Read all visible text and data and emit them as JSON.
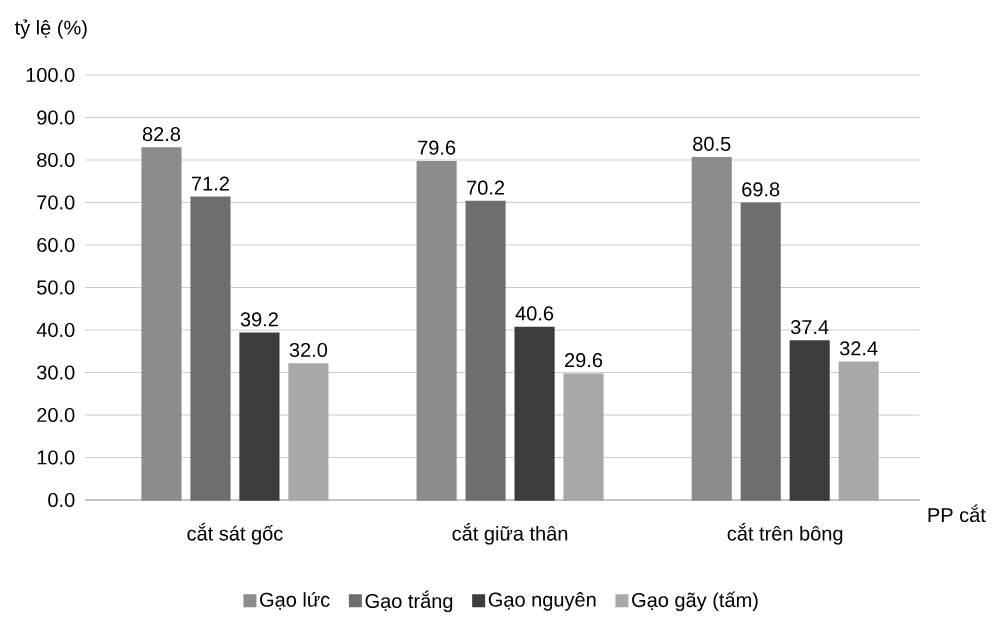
{
  "chart_data": {
    "type": "bar",
    "xlabel": "PP cắt",
    "ylabel": "tỷ lệ (%)",
    "categories": [
      "cắt sát gốc",
      "cắt giữa thân",
      "cắt trên bông"
    ],
    "series": [
      {
        "name": "Gạo lức",
        "color": "#8c8c8c",
        "values": [
          82.8,
          79.6,
          80.5
        ],
        "value_labels": [
          "82.8",
          "79.6",
          "80.5"
        ]
      },
      {
        "name": "Gạo trắng",
        "color": "#6e6e6e",
        "values": [
          71.2,
          70.2,
          69.8
        ],
        "value_labels": [
          "71.2",
          "70.2",
          "69.8"
        ]
      },
      {
        "name": "Gạo nguyên",
        "color": "#3c3c3c",
        "values": [
          39.2,
          40.6,
          37.4
        ],
        "value_labels": [
          "39.2",
          "40.6",
          "37.4"
        ]
      },
      {
        "name": "Gạo gãy (tấm)",
        "color": "#a8a8a8",
        "values": [
          32.0,
          29.6,
          32.4
        ],
        "value_labels": [
          "32.0",
          "29.6",
          "32.4"
        ]
      }
    ],
    "ylim": [
      0,
      100
    ],
    "yticks": [
      {
        "value": 0,
        "label": "0.0"
      },
      {
        "value": 10,
        "label": "10.0"
      },
      {
        "value": 20,
        "label": "20.0"
      },
      {
        "value": 30,
        "label": "30.0"
      },
      {
        "value": 40,
        "label": "40.0"
      },
      {
        "value": 50,
        "label": "50.0"
      },
      {
        "value": 60,
        "label": "60.0"
      },
      {
        "value": 70,
        "label": "70.0"
      },
      {
        "value": 80,
        "label": "80.0"
      },
      {
        "value": 90,
        "label": "90.0"
      },
      {
        "value": 100,
        "label": "100.0"
      }
    ],
    "grid": "y",
    "legend": "bottom"
  }
}
